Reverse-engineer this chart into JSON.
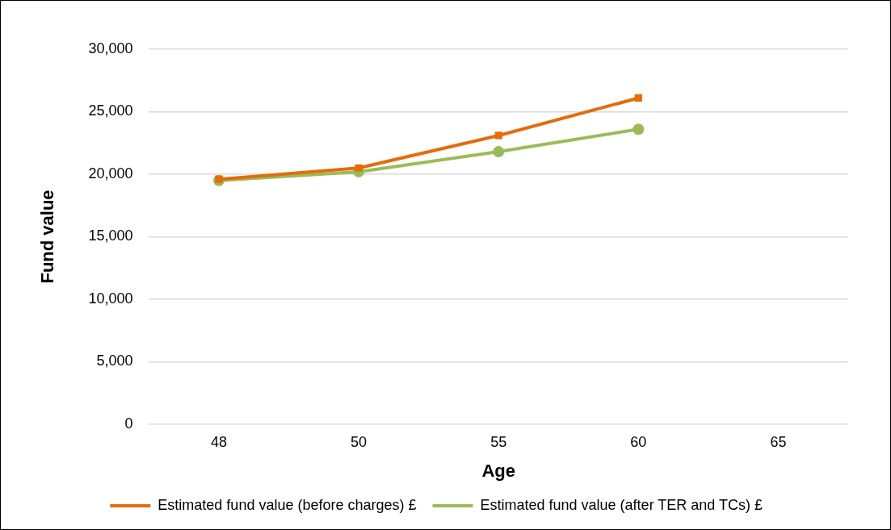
{
  "chart_data": {
    "type": "line",
    "xlabel": "Age",
    "ylabel": "Fund value",
    "categories": [
      "48",
      "50",
      "55",
      "60",
      "65"
    ],
    "series": [
      {
        "name": "Estimated fund value (before charges) £",
        "color": "#e46c0a",
        "marker": "square",
        "values": [
          19600,
          20500,
          23100,
          26100,
          null
        ]
      },
      {
        "name": "Estimated fund value (after TER and TCs) £",
        "color": "#9bbb59",
        "marker": "circle",
        "values": [
          19500,
          20200,
          21800,
          23600,
          null
        ]
      }
    ],
    "ylim": [
      0,
      30000
    ],
    "yticks": [
      0,
      {
        "value": 5000,
        "label": "5,000"
      },
      {
        "value": 10000,
        "label": "10,000"
      },
      {
        "value": 15000,
        "label": "15,000"
      },
      {
        "value": 20000,
        "label": "20,000"
      },
      {
        "value": 25000,
        "label": "25,000"
      },
      {
        "value": 30000,
        "label": "30,000"
      }
    ],
    "grid": "y",
    "legend": "bottom"
  }
}
